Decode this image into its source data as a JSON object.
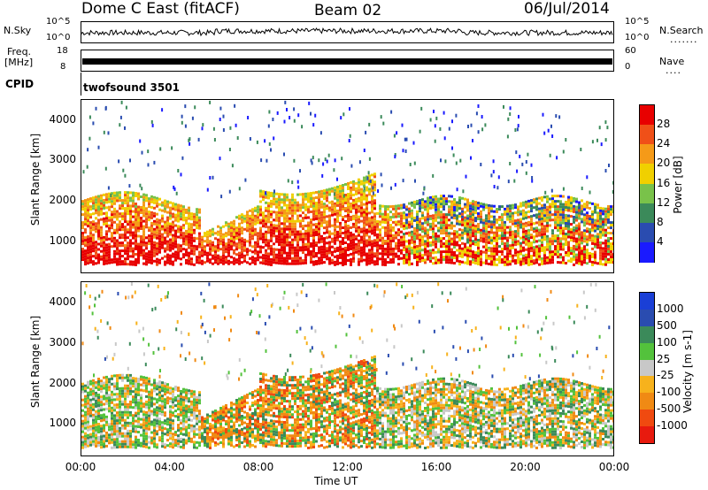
{
  "header": {
    "radar": "Dome C East (fitACF)",
    "beam": "Beam 02",
    "date": "06/Jul/2014"
  },
  "top_panels": {
    "nsky_label": "N.Sky",
    "nsky_ticks": [
      "10^5",
      "10^0"
    ],
    "nsearch_label": "N.Search",
    "nsearch_ticks": [
      "10^5",
      "10^0"
    ],
    "freq_label_1": "Freq.",
    "freq_label_2": "[MHz]",
    "freq_ticks": [
      "18",
      "8"
    ],
    "nave_label": "Nave",
    "nave_ticks": [
      "60",
      "0"
    ],
    "cpid_label": "CPID",
    "cpid_value": "twofsound 3501"
  },
  "colors": {
    "power": [
      "#1a1aff",
      "#2a4cb0",
      "#3b8a5a",
      "#79c24a",
      "#f0d000",
      "#f59a18",
      "#f05018",
      "#e80000"
    ],
    "velocity": [
      "#e81a0e",
      "#f04a10",
      "#f08a14",
      "#f7b21c",
      "#c8c8c8",
      "#53c23c",
      "#3b8a5a",
      "#2a4cb0",
      "#1a3fd6"
    ]
  },
  "chart_data": [
    {
      "type": "heatmap",
      "title": "Power",
      "ylabel": "Slant Range [km]",
      "xlabel": "",
      "x_ticks": [
        "00:00",
        "04:00",
        "08:00",
        "12:00",
        "16:00",
        "20:00",
        "00:00"
      ],
      "y_ticks": [
        "1000",
        "2000",
        "3000",
        "4000"
      ],
      "xlim": [
        0,
        24
      ],
      "ylim": [
        180,
        4500
      ],
      "colorbar": {
        "label": "Power [dB]",
        "ticks": [
          "28",
          "24",
          "20",
          "16",
          "12",
          "8",
          "4"
        ],
        "range": [
          0,
          30
        ]
      }
    },
    {
      "type": "heatmap",
      "title": "Velocity",
      "ylabel": "Slant Range [km]",
      "xlabel": "Time UT",
      "x_ticks": [
        "00:00",
        "04:00",
        "08:00",
        "12:00",
        "16:00",
        "20:00",
        "00:00"
      ],
      "y_ticks": [
        "1000",
        "2000",
        "3000",
        "4000"
      ],
      "xlim": [
        0,
        24
      ],
      "ylim": [
        180,
        4500
      ],
      "colorbar": {
        "label": "Velocity [m s-1]",
        "ticks": [
          "1000",
          "500",
          "100",
          "25",
          "-25",
          "-100",
          "-500",
          "-1000"
        ],
        "range": [
          -1200,
          1200
        ]
      }
    }
  ]
}
